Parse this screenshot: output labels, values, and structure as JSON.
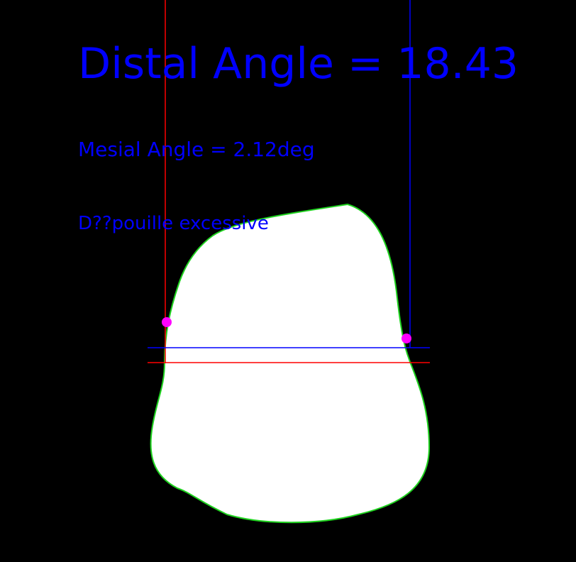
{
  "annotations": {
    "distal_angle_text": "Distal Angle = 18.43",
    "mesial_angle_text": "Mesial Angle = 2.12deg",
    "status_text": "D??pouille excessive"
  },
  "colors": {
    "background": "#000000",
    "tooth_fill": "#ffffff",
    "tooth_outline": "#1fd21f",
    "distal_line": "#ff0000",
    "mesial_line": "#0000ff",
    "contact_point": "#ff00ff",
    "text": "#0000ff"
  }
}
